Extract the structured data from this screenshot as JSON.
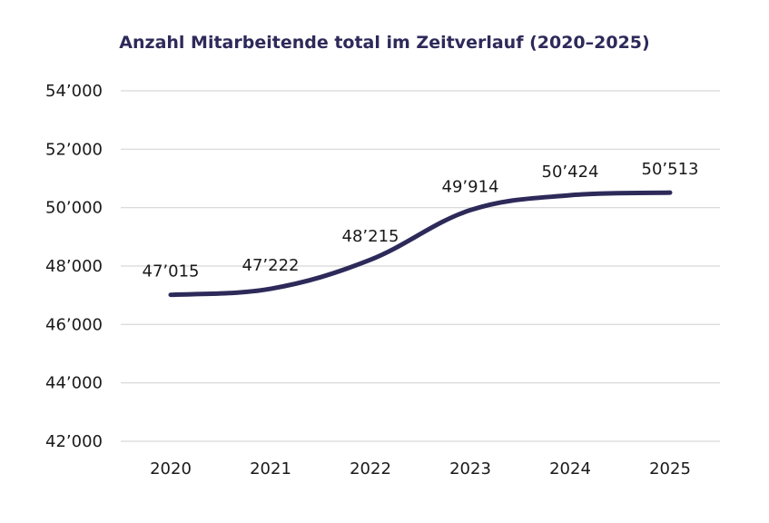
{
  "chart_data": {
    "type": "line",
    "title": "Anzahl Mitarbeitende total im Zeitverlauf (2020–2025)",
    "categories": [
      "2020",
      "2021",
      "2022",
      "2023",
      "2024",
      "2025"
    ],
    "series": [
      {
        "values": [
          47015,
          47222,
          48215,
          49914,
          50424,
          50513
        ],
        "labels": [
          "47’015",
          "47’222",
          "48’215",
          "49’914",
          "50’424",
          "50’513"
        ],
        "color": "#2d2a5a"
      }
    ],
    "ylim": [
      42000,
      54000
    ],
    "yticks": [
      54000,
      52000,
      50000,
      48000,
      46000,
      44000,
      42000
    ],
    "ytick_labels": [
      "54’000",
      "52’000",
      "50’000",
      "48’000",
      "46’000",
      "44’000",
      "42’000"
    ],
    "xlabel": "",
    "ylabel": "",
    "grid": true,
    "legend": "none"
  }
}
